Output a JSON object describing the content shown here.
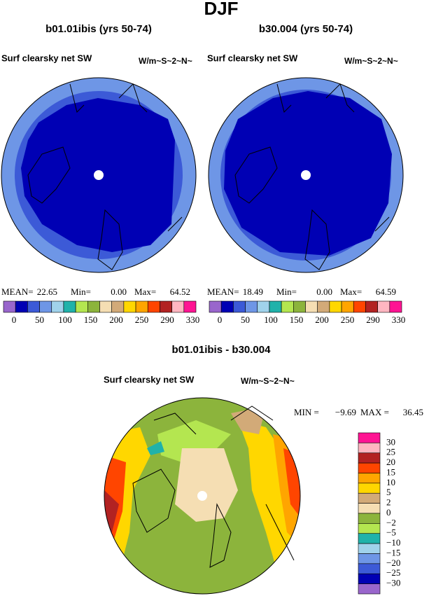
{
  "title": "DJF",
  "panels": [
    {
      "title": "b01.01ibis (yrs 50-74)",
      "left": "Surf clearsky net SW",
      "right": "W/m~S~2~N~",
      "stats": [
        {
          "label": "MEAN=",
          "value": "22.65"
        },
        {
          "label": "Min=",
          "value": "0.00"
        },
        {
          "label": "Max=",
          "value": "64.52"
        }
      ],
      "colorbar": [
        "0",
        "50",
        "100",
        "150",
        "200",
        "250",
        "290",
        "330"
      ]
    },
    {
      "title": "b30.004 (yrs 50-74)",
      "left": "Surf clearsky net SW",
      "right": "W/m~S~2~N~",
      "stats": [
        {
          "label": "MEAN=",
          "value": "18.49"
        },
        {
          "label": "Min=",
          "value": "0.00"
        },
        {
          "label": "Max=",
          "value": "64.59"
        }
      ],
      "colorbar": [
        "0",
        "50",
        "100",
        "150",
        "200",
        "250",
        "290",
        "330"
      ]
    }
  ],
  "diff": {
    "title": "b01.01ibis - b30.004",
    "left": "Surf clearsky net SW",
    "right": "W/m~S~2~N~",
    "stats": [
      {
        "label": "MIN =",
        "value": "−9.69"
      },
      {
        "label": "MAX =",
        "value": "36.45"
      }
    ],
    "colorbar": [
      "30",
      "25",
      "20",
      "15",
      "10",
      "5",
      "2",
      "0",
      "−2",
      "−5",
      "−10",
      "−15",
      "−20",
      "−25",
      "−30"
    ]
  }
}
